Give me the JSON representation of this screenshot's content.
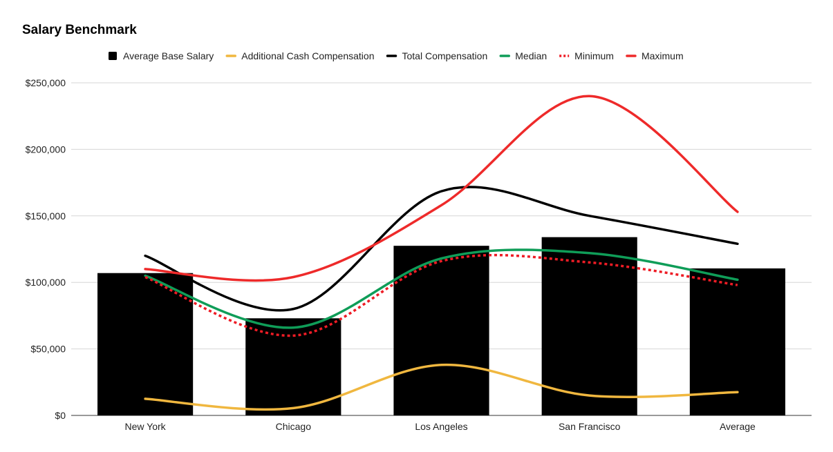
{
  "chart_data": {
    "type": "bar",
    "title": "Salary Benchmark",
    "categories": [
      "New York",
      "Chicago",
      "Los Angeles",
      "San Francisco",
      "Average"
    ],
    "ylim": [
      0,
      250000
    ],
    "yticks": [
      0,
      50000,
      100000,
      150000,
      200000,
      250000
    ],
    "ytick_labels": [
      "$0",
      "$50,000",
      "$100,000",
      "$150,000",
      "$200,000",
      "$250,000"
    ],
    "grid": true,
    "legend_position": "top",
    "series": [
      {
        "name": "Average Base Salary",
        "kind": "bar",
        "color": "#000000",
        "values": [
          107000,
          73000,
          127500,
          134000,
          110500
        ]
      },
      {
        "name": "Additional Cash Compensation",
        "kind": "line",
        "color": "#f0b73f",
        "values": [
          12500,
          5500,
          38000,
          15000,
          17500
        ]
      },
      {
        "name": "Total Compensation",
        "kind": "line",
        "color": "#000000",
        "values": [
          120000,
          80000,
          168500,
          150000,
          129000
        ]
      },
      {
        "name": "Median",
        "kind": "line",
        "color": "#0f9d58",
        "values": [
          105000,
          66000,
          118000,
          122000,
          102000
        ]
      },
      {
        "name": "Minimum",
        "kind": "line",
        "style": "dotted",
        "color": "#ee1c25",
        "values": [
          104000,
          60000,
          116000,
          115000,
          98000
        ]
      },
      {
        "name": "Maximum",
        "kind": "line",
        "color": "#ee2a2a",
        "values": [
          110000,
          104000,
          158000,
          240000,
          153000
        ]
      }
    ]
  }
}
